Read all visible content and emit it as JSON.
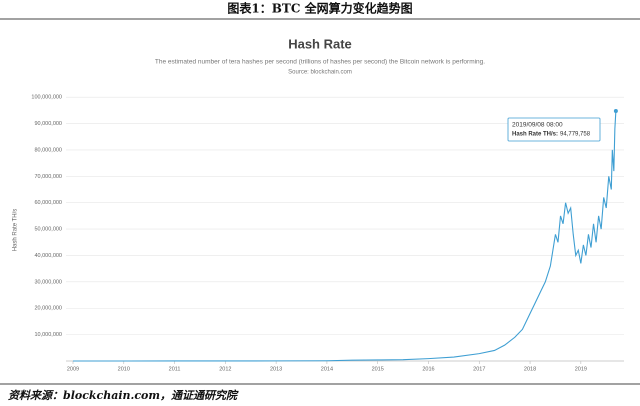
{
  "caption": "图表1：BTC 全网算力变化趋势图",
  "source_note": "资料来源：blockchain.com，通证通研究院",
  "chart_data": {
    "type": "line",
    "title": "Hash Rate",
    "subtitle": "The estimated number of tera hashes per second (trillions of hashes per second) the Bitcoin network is performing.",
    "source": "Source: blockchain.com",
    "y_label": "Hash Rate TH/s",
    "xlim": [
      2009,
      2019.85
    ],
    "xticks": [
      2009,
      2010,
      2011,
      2012,
      2013,
      2014,
      2015,
      2016,
      2017,
      2018,
      2019
    ],
    "ylim": [
      0,
      105000000
    ],
    "yticks": [
      {
        "value": 10000000,
        "label": "10,000,000"
      },
      {
        "value": 20000000,
        "label": "20,000,000"
      },
      {
        "value": 30000000,
        "label": "30,000,000"
      },
      {
        "value": 40000000,
        "label": "40,000,000"
      },
      {
        "value": 50000000,
        "label": "50,000,000"
      },
      {
        "value": 60000000,
        "label": "60,000,000"
      },
      {
        "value": 70000000,
        "label": "70,000,000"
      },
      {
        "value": 80000000,
        "label": "80,000,000"
      },
      {
        "value": 90000000,
        "label": "90,000,000"
      },
      {
        "value": 100000000,
        "label": "100,000,000"
      }
    ],
    "grid": true,
    "series": [
      {
        "name": "Hash Rate TH/s",
        "color": "#3f9fd3",
        "x": [
          2009,
          2010,
          2011,
          2012,
          2013,
          2014,
          2014.5,
          2015,
          2015.5,
          2016,
          2016.5,
          2017,
          2017.3,
          2017.5,
          2017.7,
          2017.85,
          2018,
          2018.1,
          2018.2,
          2018.3,
          2018.4,
          2018.45,
          2018.5,
          2018.55,
          2018.6,
          2018.65,
          2018.7,
          2018.75,
          2018.8,
          2018.85,
          2018.9,
          2018.95,
          2019,
          2019.05,
          2019.1,
          2019.15,
          2019.2,
          2019.25,
          2019.3,
          2019.35,
          2019.4,
          2019.45,
          2019.5,
          2019.55,
          2019.6,
          2019.62,
          2019.65,
          2019.67,
          2019.69
        ],
        "values": [
          0,
          0,
          10000,
          20000,
          50000,
          100000,
          300000,
          400000,
          500000,
          900000,
          1500000,
          2800000,
          4000000,
          6000000,
          9000000,
          12000000,
          18000000,
          22000000,
          26000000,
          30000000,
          36000000,
          42000000,
          48000000,
          45000000,
          55000000,
          52000000,
          60000000,
          56000000,
          58000000,
          48000000,
          40000000,
          42000000,
          37000000,
          44000000,
          40000000,
          48000000,
          43000000,
          52000000,
          45000000,
          55000000,
          50000000,
          62000000,
          58000000,
          70000000,
          65000000,
          80000000,
          72000000,
          88000000,
          94779758
        ]
      }
    ],
    "tooltip": {
      "date": "2019/09/08 08:00",
      "label": "Hash Rate TH/s:",
      "value_label": "94,779,758"
    }
  }
}
